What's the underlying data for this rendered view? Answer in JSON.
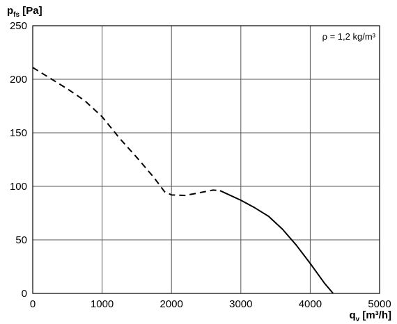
{
  "chart_data": {
    "type": "line",
    "ylabel": {
      "main": "p",
      "sub": "fs",
      "unit": " [Pa]"
    },
    "xlabel": {
      "main": "q",
      "sub": "v",
      "unit": " [m³/h]"
    },
    "annotation": "ρ = 1,2 kg/m³",
    "xlim": [
      0,
      5000
    ],
    "ylim": [
      0,
      250
    ],
    "xticks": [
      0,
      1000,
      2000,
      3000,
      4000,
      5000
    ],
    "yticks": [
      0,
      50,
      100,
      150,
      200,
      250
    ],
    "grid": true,
    "series": [
      {
        "style": "dashed",
        "x": [
          0,
          250,
          500,
          750,
          1000,
          1250,
          1500,
          1750,
          1900,
          2000,
          2200,
          2400,
          2600,
          2700
        ],
        "y": [
          211,
          201,
          191,
          180,
          165,
          145,
          127,
          108,
          95,
          92,
          91.5,
          94,
          96.5,
          96
        ]
      },
      {
        "style": "solid",
        "x": [
          2700,
          3000,
          3200,
          3400,
          3600,
          3800,
          4000,
          4200,
          4330
        ],
        "y": [
          96,
          87,
          80,
          72,
          60,
          45,
          28,
          10,
          0
        ]
      }
    ]
  }
}
